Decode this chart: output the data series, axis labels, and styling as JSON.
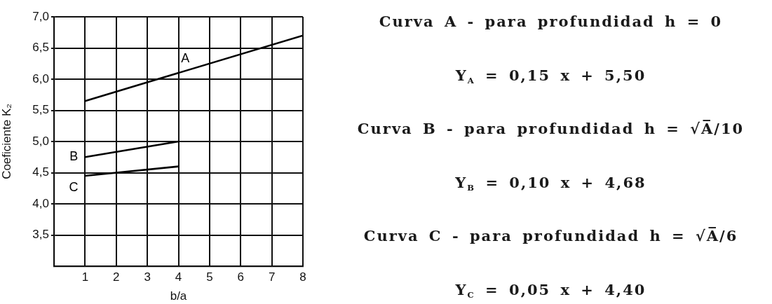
{
  "chart_data": {
    "type": "line",
    "xlabel": "b/a",
    "ylabel": "Coeficiente K₂",
    "xlim": [
      0,
      8
    ],
    "ylim": [
      3,
      7
    ],
    "xticks": [
      1,
      2,
      3,
      4,
      5,
      6,
      7,
      8
    ],
    "yticks": [
      {
        "value": 3.5,
        "label": "3,5"
      },
      {
        "value": 4,
        "label": "4,0"
      },
      {
        "value": 4.5,
        "label": "4,5"
      },
      {
        "value": 5,
        "label": "5,0"
      },
      {
        "value": 5.5,
        "label": "5,5"
      },
      {
        "value": 6,
        "label": "6,0"
      },
      {
        "value": 6.5,
        "label": "6,5"
      },
      {
        "value": 7,
        "label": "7,0"
      }
    ],
    "grid": true,
    "legend": false,
    "marker": "none",
    "line_style": "solid",
    "series": [
      {
        "name": "A",
        "color": "#000000",
        "x": [
          1,
          8
        ],
        "values": [
          5.65,
          6.7
        ]
      },
      {
        "name": "B",
        "color": "#000000",
        "x": [
          1,
          4
        ],
        "values": [
          4.75,
          5.0
        ]
      },
      {
        "name": "C",
        "color": "#000000",
        "x": [
          1,
          4
        ],
        "values": [
          4.45,
          4.6
        ]
      }
    ],
    "annotations": [
      "Curva A - para profundidad h = 0",
      "Y$_{A}$ = 0,15 x + 5,50",
      "Curva B - para profundidad h = √A̅/10",
      "Y$_{B}$ = 0,10 x + 4,68",
      "Curva C - para profundidad h = √A̅/6",
      "Y$_{C}$ = 0,05 x + 4,40"
    ]
  }
}
